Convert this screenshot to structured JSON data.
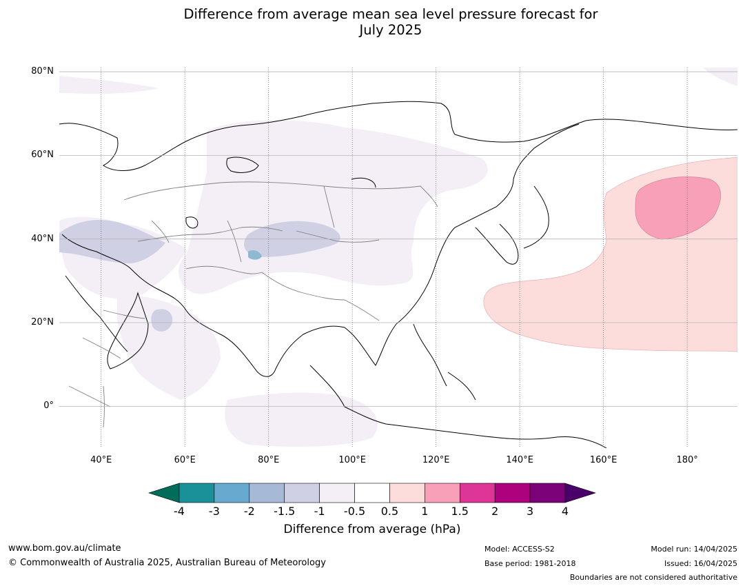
{
  "title_line1": "Difference from average mean sea level pressure forecast for",
  "title_line2": "July 2025",
  "map": {
    "projection": "equirectangular",
    "lon_range": [
      30,
      192
    ],
    "lat_range": [
      -10,
      81
    ],
    "lat_ticks": [
      {
        "value": 80,
        "label": "80°N"
      },
      {
        "value": 60,
        "label": "60°N"
      },
      {
        "value": 40,
        "label": "40°N"
      },
      {
        "value": 20,
        "label": "20°N"
      },
      {
        "value": 0,
        "label": "0°"
      }
    ],
    "lon_ticks": [
      {
        "value": 40,
        "label": "40°E"
      },
      {
        "value": 60,
        "label": "60°E"
      },
      {
        "value": 80,
        "label": "80°E"
      },
      {
        "value": 100,
        "label": "100°E"
      },
      {
        "value": 120,
        "label": "120°E"
      },
      {
        "value": 140,
        "label": "140°E"
      },
      {
        "value": 160,
        "label": "160°E"
      },
      {
        "value": 180,
        "label": "180°"
      }
    ],
    "coastline_color": "#000000",
    "border_color": "#808080"
  },
  "colorbar": {
    "label": "Difference from average (hPa)",
    "ticks": [
      "-4",
      "-3",
      "-2",
      "-1.5",
      "-1",
      "-0.5",
      "0.5",
      "1",
      "1.5",
      "2",
      "3",
      "4"
    ],
    "colors": [
      "#1a9099",
      "#67a9cf",
      "#a6b9d6",
      "#cfd0e4",
      "#f4eef6",
      "#ffffff",
      "#fddcdc",
      "#f9a0b9",
      "#dd3497",
      "#ae017e",
      "#7a0177"
    ],
    "under_color": "#016c59",
    "over_color": "#49006a"
  },
  "footer": {
    "website": "www.bom.gov.au/climate",
    "copyright": "© Commonwealth of Australia 2025, Australian Bureau of Meteorology",
    "model": "Model: ACCESS-S2",
    "base_period": "Base period: 1981-2018",
    "model_run": "Model run: 14/04/2025",
    "issued": "Issued: 16/04/2025",
    "disclaimer": "Boundaries are not considered authoritative"
  }
}
